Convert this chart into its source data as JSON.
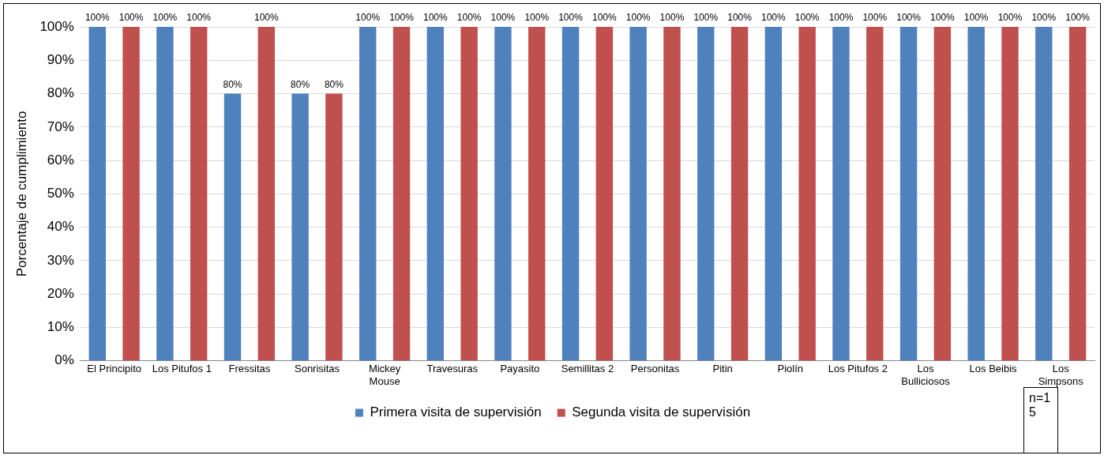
{
  "chart_data": {
    "type": "bar",
    "ylabel": "Porcentaje de cumplimiento",
    "categories": [
      "El Principito",
      "Los Pitufos 1",
      "Fressitas",
      "Sonrisitas",
      "Mickey Mouse",
      "Travesuras",
      "Payasito",
      "Semillitas 2",
      "Personitas",
      "Pitin",
      "Piolín",
      "Los Pitufos 2",
      "Los Bulliciosos",
      "Los Beibis",
      "Los Simpsons"
    ],
    "series": [
      {
        "name": "Primera visita de supervisión",
        "color": "#4f81bd",
        "values": [
          100,
          100,
          80,
          80,
          100,
          100,
          100,
          100,
          100,
          100,
          100,
          100,
          100,
          100,
          100
        ],
        "value_labels": [
          "100%",
          "100%",
          "80%",
          "80%",
          "100%",
          "100%",
          "100%",
          "100%",
          "100%",
          "100%",
          "100%",
          "100%",
          "100%",
          "100%",
          "100%"
        ]
      },
      {
        "name": "Segunda visita de supervisión",
        "color": "#c0504d",
        "values": [
          100,
          100,
          100,
          80,
          100,
          100,
          100,
          100,
          100,
          100,
          100,
          100,
          100,
          100,
          100
        ],
        "value_labels": [
          "100%",
          "100%",
          "100%",
          "80%",
          "100%",
          "100%",
          "100%",
          "100%",
          "100%",
          "100%",
          "100%",
          "100%",
          "100%",
          "100%",
          "100%"
        ]
      }
    ],
    "ylim": [
      0,
      100
    ],
    "yticks": [
      {
        "value": 0,
        "label": "0%"
      },
      {
        "value": 10,
        "label": "10%"
      },
      {
        "value": 20,
        "label": "20%"
      },
      {
        "value": 30,
        "label": "30%"
      },
      {
        "value": 40,
        "label": "40%"
      },
      {
        "value": 50,
        "label": "50%"
      },
      {
        "value": 60,
        "label": "60%"
      },
      {
        "value": 70,
        "label": "70%"
      },
      {
        "value": 80,
        "label": "80%"
      },
      {
        "value": 90,
        "label": "90%"
      },
      {
        "value": 100,
        "label": "100%"
      }
    ],
    "grid": "y",
    "legend": "bottom",
    "annotations": [
      "n=15"
    ]
  }
}
